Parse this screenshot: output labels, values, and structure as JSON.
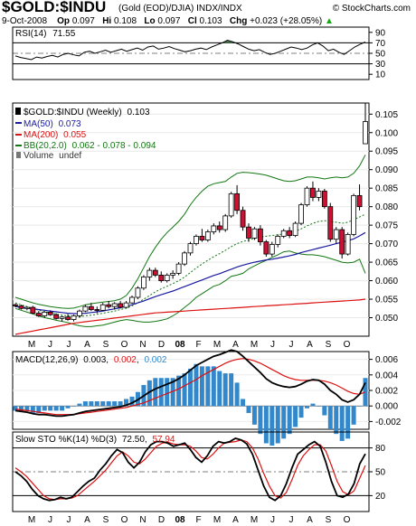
{
  "header": {
    "symbol": "$GOLD:$INDU",
    "desc": "(Gold (EOD)/DJIA)  INDX/INDX",
    "site": "© StockCharts.com",
    "date": "9-Oct-2008",
    "op_label": "Op",
    "op": "0.097",
    "hi_label": "Hi",
    "hi": "0.108",
    "lo_label": "Lo",
    "lo": "0.097",
    "cl_label": "Cl",
    "cl": "0.103",
    "chg_label": "Chg",
    "chg": "+0.023 (+28.05%)",
    "chg_arrow": "▲"
  },
  "colors": {
    "up": "#ffffff",
    "down": "#cc1133",
    "ma50": "#1a1aa0",
    "ma200": "#dd1111",
    "bb": "#117711",
    "macd": "#000000",
    "signal": "#dd1111",
    "hist": "#3388cc",
    "grid": "#000000"
  },
  "chart_data": [
    {
      "type": "line",
      "panel": "RSI",
      "label_prefix": "RSI(14)",
      "label_value": "71.55",
      "ylim": [
        0,
        100
      ],
      "y_ticks": [
        90,
        70,
        50,
        30,
        10
      ],
      "values": [
        45,
        42,
        40,
        38,
        43,
        41,
        44,
        46,
        43,
        48,
        50,
        47,
        45,
        52,
        54,
        50,
        53,
        56,
        52,
        55,
        58,
        54,
        57,
        60,
        56,
        62,
        64,
        58,
        60,
        63,
        59,
        56,
        53,
        55,
        58,
        60,
        57,
        62,
        66,
        70,
        75,
        72,
        68,
        63,
        58,
        55,
        57,
        52,
        48,
        50,
        54,
        58,
        62,
        60,
        57,
        60,
        66,
        70,
        64,
        55,
        58,
        52,
        48,
        55,
        62,
        67,
        71.55
      ]
    },
    {
      "type": "candlestick",
      "panel": "Price",
      "title": "$GOLD:$INDU (Weekly)",
      "last": "0.103",
      "legend": [
        {
          "name": "MA(50)",
          "value": "0.073"
        },
        {
          "name": "MA(200)",
          "value": "0.055"
        },
        {
          "name": "BB(20,2.0)",
          "value": "0.062 - 0.078 - 0.094"
        },
        {
          "name": "Volume",
          "value": "undef"
        }
      ],
      "ylim": [
        0.045,
        0.108
      ],
      "y_ticks": [
        0.05,
        0.055,
        0.06,
        0.065,
        0.07,
        0.075,
        0.08,
        0.085,
        0.09,
        0.095,
        0.1,
        0.105
      ],
      "x_labels": [
        "M",
        "J",
        "J",
        "A",
        "S",
        "O",
        "N",
        "D",
        "08",
        "F",
        "M",
        "A",
        "M",
        "J",
        "J",
        "A",
        "S",
        "O"
      ],
      "candles": [
        [
          0.0535,
          0.0538,
          0.0528,
          0.0532
        ],
        [
          0.0532,
          0.0535,
          0.0522,
          0.0525
        ],
        [
          0.0525,
          0.053,
          0.052,
          0.0528
        ],
        [
          0.0528,
          0.0532,
          0.051,
          0.0512
        ],
        [
          0.0512,
          0.0518,
          0.0502,
          0.0505
        ],
        [
          0.0505,
          0.0518,
          0.05,
          0.0515
        ],
        [
          0.0515,
          0.052,
          0.0505,
          0.0508
        ],
        [
          0.0508,
          0.0512,
          0.0495,
          0.0498
        ],
        [
          0.0498,
          0.0505,
          0.049,
          0.0502
        ],
        [
          0.0502,
          0.051,
          0.0492,
          0.0495
        ],
        [
          0.0495,
          0.0508,
          0.049,
          0.0505
        ],
        [
          0.0505,
          0.0522,
          0.05,
          0.0518
        ],
        [
          0.0518,
          0.0535,
          0.0515,
          0.053
        ],
        [
          0.053,
          0.054,
          0.0518,
          0.0522
        ],
        [
          0.0522,
          0.053,
          0.0512,
          0.052
        ],
        [
          0.052,
          0.054,
          0.0518,
          0.0535
        ],
        [
          0.0535,
          0.0545,
          0.0525,
          0.053
        ],
        [
          0.053,
          0.0542,
          0.0522,
          0.0538
        ],
        [
          0.0538,
          0.0545,
          0.0525,
          0.0528
        ],
        [
          0.0528,
          0.0545,
          0.0525,
          0.054
        ],
        [
          0.054,
          0.056,
          0.0538,
          0.0555
        ],
        [
          0.0555,
          0.0585,
          0.055,
          0.058
        ],
        [
          0.058,
          0.0615,
          0.0575,
          0.061
        ],
        [
          0.061,
          0.0635,
          0.06,
          0.0628
        ],
        [
          0.0628,
          0.0635,
          0.061,
          0.0615
        ],
        [
          0.0615,
          0.0625,
          0.0595,
          0.06
        ],
        [
          0.06,
          0.062,
          0.0595,
          0.0615
        ],
        [
          0.0615,
          0.0628,
          0.0605,
          0.062
        ],
        [
          0.062,
          0.065,
          0.0615,
          0.0645
        ],
        [
          0.0645,
          0.068,
          0.064,
          0.0675
        ],
        [
          0.0675,
          0.0705,
          0.0668,
          0.07
        ],
        [
          0.07,
          0.0725,
          0.0695,
          0.072
        ],
        [
          0.072,
          0.074,
          0.0705,
          0.071
        ],
        [
          0.071,
          0.0738,
          0.0705,
          0.0732
        ],
        [
          0.0732,
          0.0755,
          0.0725,
          0.0748
        ],
        [
          0.0748,
          0.076,
          0.073,
          0.0738
        ],
        [
          0.0738,
          0.078,
          0.0732,
          0.0775
        ],
        [
          0.0775,
          0.084,
          0.077,
          0.0835
        ],
        [
          0.0835,
          0.0858,
          0.078,
          0.079
        ],
        [
          0.079,
          0.08,
          0.0735,
          0.0745
        ],
        [
          0.0745,
          0.0755,
          0.0705,
          0.0715
        ],
        [
          0.0715,
          0.0745,
          0.071,
          0.074
        ],
        [
          0.074,
          0.075,
          0.0695,
          0.0705
        ],
        [
          0.0705,
          0.071,
          0.0665,
          0.0672
        ],
        [
          0.0672,
          0.0705,
          0.0665,
          0.0698
        ],
        [
          0.0698,
          0.0725,
          0.069,
          0.072
        ],
        [
          0.072,
          0.074,
          0.0715,
          0.0735
        ],
        [
          0.0735,
          0.0745,
          0.0715,
          0.0722
        ],
        [
          0.0722,
          0.076,
          0.0718,
          0.0755
        ],
        [
          0.0755,
          0.081,
          0.075,
          0.0805
        ],
        [
          0.0805,
          0.0855,
          0.08,
          0.085
        ],
        [
          0.085,
          0.0868,
          0.0815,
          0.0825
        ],
        [
          0.0825,
          0.085,
          0.0815,
          0.0842
        ],
        [
          0.0842,
          0.0848,
          0.0795,
          0.08
        ],
        [
          0.08,
          0.081,
          0.0705,
          0.0712
        ],
        [
          0.0712,
          0.0745,
          0.07,
          0.0738
        ],
        [
          0.0738,
          0.0745,
          0.066,
          0.0672
        ],
        [
          0.0672,
          0.073,
          0.0668,
          0.0725
        ],
        [
          0.0725,
          0.0835,
          0.072,
          0.083
        ],
        [
          0.083,
          0.086,
          0.079,
          0.08
        ],
        [
          0.097,
          0.108,
          0.097,
          0.103
        ]
      ],
      "ma50": [
        0.053,
        0.0528,
        0.0526,
        0.0524,
        0.0522,
        0.052,
        0.0518,
        0.0516,
        0.0514,
        0.0512,
        0.0511,
        0.0511,
        0.0512,
        0.0514,
        0.0516,
        0.0518,
        0.0521,
        0.0524,
        0.0527,
        0.0531,
        0.0535,
        0.054,
        0.0545,
        0.0551,
        0.0557,
        0.0562,
        0.0567,
        0.0572,
        0.0578,
        0.0584,
        0.059,
        0.0596,
        0.0602,
        0.0608,
        0.0614,
        0.0619,
        0.0625,
        0.0631,
        0.0637,
        0.0642,
        0.0646,
        0.065,
        0.0653,
        0.0656,
        0.0658,
        0.0661,
        0.0664,
        0.0667,
        0.0671,
        0.0676,
        0.068,
        0.0684,
        0.0688,
        0.0692,
        0.0696,
        0.07,
        0.0704,
        0.0708,
        0.0713,
        0.0721,
        0.073
      ],
      "ma200": [
        0.0455,
        0.0458,
        0.0461,
        0.0464,
        0.0467,
        0.047,
        0.0473,
        0.0476,
        0.0479,
        0.0482,
        0.0485,
        0.0487,
        0.0489,
        0.0491,
        0.0493,
        0.0495,
        0.0497,
        0.0499,
        0.0501,
        0.0503,
        0.0505,
        0.0507,
        0.0509,
        0.0511,
        0.0513,
        0.0514,
        0.0515,
        0.0516,
        0.0517,
        0.0518,
        0.0519,
        0.052,
        0.0521,
        0.0522,
        0.0523,
        0.0524,
        0.0525,
        0.0526,
        0.0527,
        0.0528,
        0.0529,
        0.053,
        0.0531,
        0.0532,
        0.0533,
        0.0534,
        0.0535,
        0.0536,
        0.0537,
        0.0538,
        0.0539,
        0.054,
        0.0541,
        0.0542,
        0.0543,
        0.0544,
        0.0545,
        0.0546,
        0.0547,
        0.0548,
        0.055
      ],
      "bb_mid": [
        0.054,
        0.0535,
        0.053,
        0.0525,
        0.052,
        0.0516,
        0.0513,
        0.051,
        0.0507,
        0.0505,
        0.0503,
        0.0503,
        0.0505,
        0.0507,
        0.0509,
        0.0512,
        0.0515,
        0.0518,
        0.0522,
        0.0526,
        0.0532,
        0.054,
        0.055,
        0.056,
        0.057,
        0.0578,
        0.0585,
        0.0592,
        0.06,
        0.061,
        0.0622,
        0.0634,
        0.0645,
        0.0655,
        0.0665,
        0.0673,
        0.0682,
        0.0692,
        0.07,
        0.0706,
        0.071,
        0.0714,
        0.0718,
        0.072,
        0.0722,
        0.0724,
        0.0727,
        0.073,
        0.0734,
        0.074,
        0.0748,
        0.0755,
        0.076,
        0.0762,
        0.076,
        0.0758,
        0.0755,
        0.0758,
        0.0765,
        0.0772,
        0.078
      ],
      "bb_up": [
        0.0555,
        0.055,
        0.0545,
        0.054,
        0.0536,
        0.0533,
        0.053,
        0.0528,
        0.0526,
        0.0525,
        0.0526,
        0.053,
        0.0535,
        0.0538,
        0.054,
        0.0542,
        0.0544,
        0.0546,
        0.055,
        0.056,
        0.058,
        0.0605,
        0.0635,
        0.0665,
        0.069,
        0.0712,
        0.073,
        0.0745,
        0.076,
        0.078,
        0.0805,
        0.0825,
        0.0842,
        0.0855,
        0.0862,
        0.0865,
        0.0868,
        0.088,
        0.089,
        0.0893,
        0.0892,
        0.089,
        0.0888,
        0.0885,
        0.088,
        0.0875,
        0.087,
        0.0868,
        0.087,
        0.0875,
        0.088,
        0.088,
        0.0878,
        0.0875,
        0.0878,
        0.088,
        0.0878,
        0.088,
        0.089,
        0.091,
        0.094
      ],
      "bb_low": [
        0.0525,
        0.052,
        0.0515,
        0.051,
        0.0505,
        0.05,
        0.0497,
        0.0493,
        0.049,
        0.0487,
        0.0482,
        0.0478,
        0.0476,
        0.0476,
        0.0478,
        0.048,
        0.0484,
        0.0488,
        0.0492,
        0.0495,
        0.0493,
        0.049,
        0.0488,
        0.0488,
        0.049,
        0.0493,
        0.0497,
        0.0505,
        0.0515,
        0.0528,
        0.054,
        0.0555,
        0.0565,
        0.0575,
        0.0585,
        0.059,
        0.06,
        0.0612,
        0.0615,
        0.062,
        0.0632,
        0.064,
        0.0648,
        0.0655,
        0.0663,
        0.067,
        0.0678,
        0.068,
        0.0675,
        0.0672,
        0.067,
        0.067,
        0.0668,
        0.0665,
        0.066,
        0.0655,
        0.065,
        0.0648,
        0.065,
        0.0658,
        0.062
      ]
    },
    {
      "type": "line",
      "panel": "MACD",
      "label_prefix": "MACD(12,26,9)",
      "label_values": [
        "0.003",
        "0.002",
        "0.002"
      ],
      "ylim": [
        -0.003,
        0.007
      ],
      "y_ticks": [
        0.006,
        0.004,
        0.002,
        0.0,
        -0.002
      ],
      "y_tick_labels": [
        "0.006",
        "0.004",
        "0.002",
        "0.000",
        "-0.002"
      ],
      "macd": [
        -0.0006,
        -0.0007,
        -0.0008,
        -0.001,
        -0.0011,
        -0.0011,
        -0.0012,
        -0.0013,
        -0.0013,
        -0.0012,
        -0.0011,
        -0.0009,
        -0.0007,
        -0.0006,
        -0.0005,
        -0.0004,
        -0.0003,
        -0.0002,
        -0.0001,
        0.0001,
        0.0004,
        0.0008,
        0.0013,
        0.0018,
        0.0022,
        0.0025,
        0.0028,
        0.0031,
        0.0035,
        0.004,
        0.0046,
        0.0052,
        0.0056,
        0.006,
        0.0064,
        0.0066,
        0.0069,
        0.0072,
        0.007,
        0.0064,
        0.0057,
        0.005,
        0.0043,
        0.0035,
        0.003,
        0.0027,
        0.0025,
        0.0024,
        0.0025,
        0.0028,
        0.0032,
        0.0034,
        0.0033,
        0.0028,
        0.002,
        0.0015,
        0.0008,
        0.0005,
        0.0008,
        0.0015,
        0.003
      ],
      "signal": [
        -0.0004,
        -0.0005,
        -0.0006,
        -0.0007,
        -0.0008,
        -0.0009,
        -0.001,
        -0.0011,
        -0.0011,
        -0.0011,
        -0.0011,
        -0.001,
        -0.0009,
        -0.0008,
        -0.0007,
        -0.0006,
        -0.0005,
        -0.0004,
        -0.0003,
        -0.0002,
        0.0,
        0.0002,
        0.0004,
        0.0007,
        0.001,
        0.0013,
        0.0016,
        0.0019,
        0.0022,
        0.0026,
        0.003,
        0.0034,
        0.0039,
        0.0043,
        0.0047,
        0.0051,
        0.0055,
        0.0058,
        0.006,
        0.0061,
        0.006,
        0.0058,
        0.0055,
        0.0051,
        0.0047,
        0.0043,
        0.0039,
        0.0036,
        0.0034,
        0.0033,
        0.0033,
        0.0033,
        0.0033,
        0.0032,
        0.003,
        0.0027,
        0.0023,
        0.0019,
        0.0016,
        0.0015,
        0.0018
      ]
    },
    {
      "type": "line",
      "panel": "STO",
      "label_prefix": "Slow STO %K(14) %D(3)",
      "label_values": [
        "72.50",
        "57.94"
      ],
      "ylim": [
        0,
        100
      ],
      "y_ticks": [
        80,
        50,
        20
      ],
      "k": [
        50,
        45,
        38,
        28,
        20,
        16,
        14,
        15,
        18,
        16,
        18,
        25,
        32,
        38,
        42,
        52,
        60,
        70,
        78,
        74,
        62,
        55,
        62,
        75,
        84,
        88,
        88,
        86,
        82,
        84,
        86,
        78,
        68,
        62,
        70,
        82,
        88,
        86,
        88,
        92,
        90,
        85,
        72,
        52,
        32,
        18,
        14,
        20,
        35,
        55,
        72,
        78,
        84,
        88,
        82,
        62,
        38,
        20,
        18,
        22,
        35,
        60,
        72.5
      ],
      "d": [
        55,
        50,
        44,
        36,
        28,
        20,
        16,
        15,
        16,
        16,
        17,
        20,
        26,
        32,
        38,
        45,
        52,
        61,
        70,
        75,
        70,
        62,
        60,
        66,
        74,
        82,
        86,
        87,
        85,
        84,
        84,
        82,
        76,
        68,
        66,
        72,
        80,
        86,
        87,
        88,
        90,
        88,
        80,
        66,
        48,
        32,
        20,
        17,
        24,
        40,
        58,
        70,
        78,
        84,
        84,
        76,
        58,
        38,
        25,
        21,
        26,
        42,
        57.94
      ]
    }
  ]
}
